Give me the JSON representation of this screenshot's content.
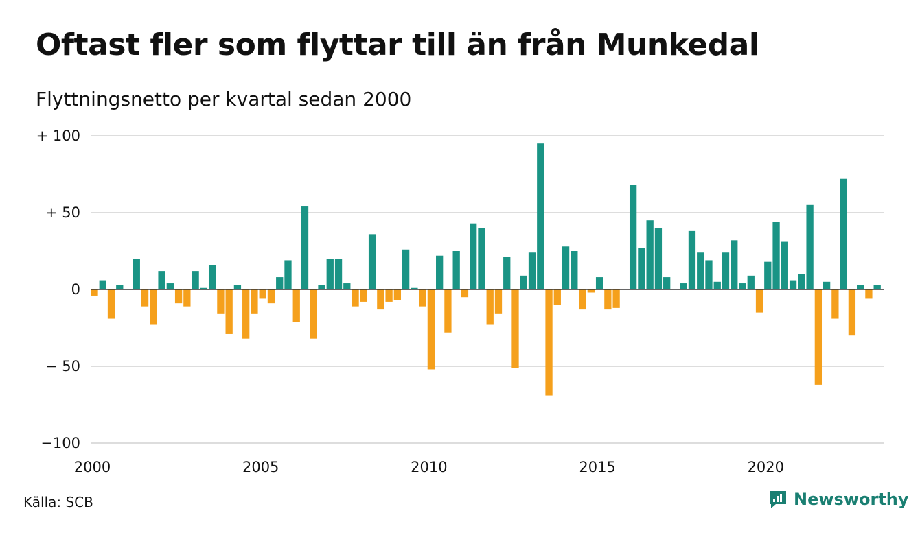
{
  "title": "Oftast fler som flyttar till än från Munkedal",
  "subtitle": "Flyttningsnetto per kvartal sedan 2000",
  "source": "Källa: SCB",
  "brand": "Newsworthy",
  "colors": {
    "positive": "#1a9485",
    "negative": "#f5a01c",
    "grid": "#dddddd",
    "zero": "#333333",
    "brand": "#1a7f72"
  },
  "chart_data": {
    "type": "bar",
    "ylim": [
      -100,
      100
    ],
    "yticks": [
      100,
      50,
      0,
      -50,
      -100
    ],
    "ytick_labels": [
      "+ 100",
      "+  50",
      "0",
      "− 50",
      "−100"
    ],
    "xtick_labels": [
      "2000",
      "2005",
      "2010",
      "2015",
      "2020"
    ],
    "start": "2000 Q1",
    "frequency": "quarterly",
    "values": [
      -4,
      6,
      -19,
      3,
      0,
      20,
      -11,
      -23,
      12,
      4,
      -9,
      -11,
      12,
      1,
      16,
      -16,
      -29,
      3,
      -32,
      -16,
      -6,
      -9,
      8,
      19,
      -21,
      54,
      -32,
      3,
      20,
      20,
      4,
      -11,
      -8,
      36,
      -13,
      -8,
      -7,
      26,
      1,
      -11,
      -52,
      22,
      -28,
      25,
      -5,
      43,
      40,
      -23,
      -16,
      21,
      -51,
      9,
      24,
      95,
      -69,
      -10,
      28,
      25,
      -13,
      -2,
      8,
      -13,
      -12,
      0,
      68,
      27,
      45,
      40,
      8,
      0,
      4,
      38,
      24,
      19,
      5,
      24,
      32,
      4,
      9,
      -15,
      18,
      44,
      31,
      6,
      10,
      55,
      -62,
      5,
      -19,
      72,
      -30,
      3,
      -6,
      3
    ]
  }
}
